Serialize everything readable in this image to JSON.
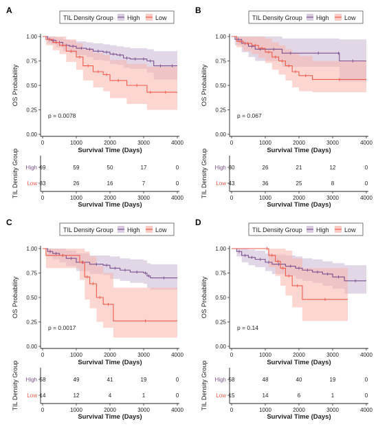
{
  "colors": {
    "high": "#7b4f8e",
    "low": "#ef5a4b",
    "high_band": "#c9b6d3",
    "low_band": "#f9b5ac"
  },
  "chart_data": [
    {
      "type": "line",
      "panel": "A",
      "legend_title": "TIL Density Group",
      "legend": [
        "High",
        "Low"
      ],
      "legend_position": "top",
      "xlabel": "Survival Time (Days)",
      "ylabel": "OS Probability",
      "xlim": [
        0,
        4000
      ],
      "ylim": [
        0,
        1
      ],
      "xticks": [
        "0",
        "1000",
        "2000",
        "3000",
        "4000"
      ],
      "yticks": [
        "0.00",
        "0.25",
        "0.50",
        "0.75",
        "1.00"
      ],
      "pvalue": "p = 0.0078",
      "risk_table_title": "TIL Density Group",
      "risk_table_rows": [
        "High",
        "Low"
      ],
      "risk_table": [
        [
          "69",
          "59",
          "50",
          "17",
          "0"
        ],
        [
          "33",
          "26",
          "16",
          "7",
          "0"
        ]
      ],
      "series": [
        {
          "name": "High",
          "x": [
            0,
            150,
            250,
            400,
            600,
            800,
            1000,
            1300,
            1500,
            1800,
            2000,
            2200,
            2400,
            2600,
            2900,
            3100,
            3300,
            3700,
            4000
          ],
          "y": [
            1.0,
            0.97,
            0.96,
            0.94,
            0.91,
            0.9,
            0.88,
            0.87,
            0.85,
            0.84,
            0.82,
            0.81,
            0.78,
            0.77,
            0.77,
            0.75,
            0.7,
            0.7,
            0.7
          ],
          "lower": [
            1.0,
            0.93,
            0.92,
            0.89,
            0.85,
            0.83,
            0.81,
            0.79,
            0.76,
            0.75,
            0.72,
            0.71,
            0.68,
            0.67,
            0.67,
            0.63,
            0.56,
            0.56,
            0.56
          ],
          "upper": [
            1.0,
            1.0,
            1.0,
            0.99,
            0.97,
            0.96,
            0.95,
            0.94,
            0.93,
            0.92,
            0.91,
            0.9,
            0.89,
            0.88,
            0.88,
            0.87,
            0.85,
            0.85,
            0.85
          ]
        },
        {
          "name": "Low",
          "x": [
            0,
            100,
            300,
            500,
            700,
            1000,
            1200,
            1500,
            1800,
            2000,
            2500,
            3100,
            3300,
            4000
          ],
          "y": [
            1.0,
            0.97,
            0.94,
            0.91,
            0.85,
            0.79,
            0.7,
            0.64,
            0.61,
            0.55,
            0.5,
            0.43,
            0.43,
            0.43
          ],
          "lower": [
            1.0,
            0.91,
            0.86,
            0.82,
            0.74,
            0.66,
            0.55,
            0.48,
            0.44,
            0.37,
            0.31,
            0.25,
            0.25,
            0.25
          ],
          "upper": [
            1.0,
            1.0,
            1.0,
            1.0,
            0.97,
            0.93,
            0.87,
            0.83,
            0.81,
            0.76,
            0.72,
            0.69,
            0.69,
            0.69
          ]
        }
      ]
    },
    {
      "type": "line",
      "panel": "B",
      "legend_title": "TIL Density Group",
      "legend": [
        "High",
        "Low"
      ],
      "legend_position": "top",
      "xlabel": "Survival Time (Days)",
      "ylabel": "OS Probability",
      "xlim": [
        0,
        4000
      ],
      "ylim": [
        0,
        1
      ],
      "xticks": [
        "0",
        "1000",
        "2000",
        "3000",
        "4000"
      ],
      "yticks": [
        "0.00",
        "0.25",
        "0.50",
        "0.75",
        "1.00"
      ],
      "pvalue": "p = 0.067",
      "risk_table_title": "TIL Density Group",
      "risk_table_rows": [
        "High",
        "Low"
      ],
      "risk_table": [
        [
          "30",
          "26",
          "21",
          "12",
          "0"
        ],
        [
          "43",
          "36",
          "25",
          "8",
          "0"
        ]
      ],
      "series": [
        {
          "name": "High",
          "x": [
            0,
            100,
            300,
            500,
            700,
            1000,
            1500,
            2000,
            3150,
            3200,
            4000
          ],
          "y": [
            1.0,
            0.97,
            0.93,
            0.9,
            0.87,
            0.87,
            0.83,
            0.83,
            0.83,
            0.75,
            0.75
          ],
          "lower": [
            1.0,
            0.91,
            0.84,
            0.79,
            0.75,
            0.75,
            0.69,
            0.69,
            0.69,
            0.54,
            0.54
          ],
          "upper": [
            1.0,
            1.0,
            1.0,
            1.0,
            1.0,
            1.0,
            0.98,
            0.98,
            0.98,
            0.97,
            0.97
          ]
        },
        {
          "name": "Low",
          "x": [
            0,
            150,
            350,
            600,
            800,
            1000,
            1200,
            1400,
            1600,
            1800,
            2000,
            2400,
            4000
          ],
          "y": [
            1.0,
            0.95,
            0.93,
            0.91,
            0.88,
            0.84,
            0.79,
            0.75,
            0.7,
            0.64,
            0.6,
            0.56,
            0.56
          ],
          "lower": [
            1.0,
            0.89,
            0.85,
            0.82,
            0.78,
            0.73,
            0.66,
            0.61,
            0.55,
            0.48,
            0.44,
            0.43,
            0.43
          ],
          "upper": [
            1.0,
            1.0,
            1.0,
            1.0,
            1.0,
            0.98,
            0.94,
            0.91,
            0.87,
            0.83,
            0.8,
            0.75,
            0.75
          ]
        }
      ]
    },
    {
      "type": "line",
      "panel": "C",
      "legend_title": "TIL Density Group",
      "legend": [
        "High",
        "Low"
      ],
      "legend_position": "top",
      "xlabel": "Survival Time (Days)",
      "ylabel": "OS Probability",
      "xlim": [
        0,
        4000
      ],
      "ylim": [
        0,
        1
      ],
      "xticks": [
        "0",
        "1000",
        "2000",
        "3000",
        "4000"
      ],
      "yticks": [
        "0.00",
        "0.25",
        "0.50",
        "0.75",
        "1.00"
      ],
      "pvalue": "p = 0.0017",
      "risk_table_title": "TIL Density Group",
      "risk_table_rows": [
        "High",
        "Low"
      ],
      "risk_table": [
        [
          "58",
          "49",
          "41",
          "19",
          "0"
        ],
        [
          "14",
          "12",
          "4",
          "1",
          "0"
        ]
      ],
      "series": [
        {
          "name": "High",
          "x": [
            0,
            150,
            300,
            500,
            700,
            1000,
            1400,
            1800,
            2000,
            2300,
            2600,
            3000,
            3100,
            3200,
            4000
          ],
          "y": [
            1.0,
            0.97,
            0.95,
            0.93,
            0.9,
            0.86,
            0.84,
            0.83,
            0.8,
            0.78,
            0.76,
            0.75,
            0.72,
            0.7,
            0.7
          ],
          "lower": [
            1.0,
            0.92,
            0.89,
            0.86,
            0.82,
            0.77,
            0.74,
            0.73,
            0.69,
            0.67,
            0.65,
            0.64,
            0.6,
            0.58,
            0.58
          ],
          "upper": [
            1.0,
            1.0,
            1.0,
            1.0,
            0.98,
            0.95,
            0.93,
            0.93,
            0.92,
            0.9,
            0.89,
            0.88,
            0.85,
            0.84,
            0.84
          ]
        },
        {
          "name": "Low",
          "x": [
            0,
            100,
            1100,
            1250,
            1400,
            1600,
            1800,
            2100,
            4000
          ],
          "y": [
            1.0,
            0.93,
            0.86,
            0.71,
            0.64,
            0.5,
            0.43,
            0.26,
            0.26
          ],
          "lower": [
            1.0,
            0.8,
            0.68,
            0.48,
            0.39,
            0.25,
            0.19,
            0.09,
            0.09
          ],
          "upper": [
            1.0,
            1.0,
            1.0,
            0.97,
            0.92,
            0.82,
            0.75,
            0.6,
            0.6
          ]
        }
      ]
    },
    {
      "type": "line",
      "panel": "D",
      "legend_title": "TIL Density Group",
      "legend": [
        "High",
        "Low"
      ],
      "legend_position": "top",
      "xlabel": "Survival Time (Days)",
      "ylabel": "OS Probability",
      "xlim": [
        0,
        4000
      ],
      "ylim": [
        0,
        1
      ],
      "xticks": [
        "0",
        "1000",
        "2000",
        "3000",
        "4000"
      ],
      "yticks": [
        "0.00",
        "0.25",
        "0.50",
        "0.75",
        "1.00"
      ],
      "pvalue": "p = 0.14",
      "risk_table_title": "TIL Density Group",
      "risk_table_rows": [
        "High",
        "Low"
      ],
      "risk_table": [
        [
          "58",
          "48",
          "40",
          "19",
          "0"
        ],
        [
          "15",
          "14",
          "6",
          "1",
          "0"
        ]
      ],
      "series": [
        {
          "name": "High",
          "x": [
            0,
            150,
            300,
            500,
            700,
            1000,
            1200,
            1600,
            1900,
            2100,
            2400,
            2700,
            3000,
            3350,
            4000
          ],
          "y": [
            1.0,
            0.97,
            0.93,
            0.91,
            0.89,
            0.86,
            0.84,
            0.82,
            0.8,
            0.78,
            0.76,
            0.74,
            0.71,
            0.67,
            0.67
          ],
          "lower": [
            1.0,
            0.92,
            0.86,
            0.83,
            0.81,
            0.77,
            0.74,
            0.72,
            0.69,
            0.67,
            0.65,
            0.62,
            0.59,
            0.54,
            0.54
          ],
          "upper": [
            1.0,
            1.0,
            1.0,
            0.99,
            0.98,
            0.95,
            0.94,
            0.93,
            0.92,
            0.9,
            0.89,
            0.87,
            0.85,
            0.83,
            0.83
          ]
        },
        {
          "name": "Low",
          "x": [
            0,
            1000,
            1100,
            1300,
            1450,
            1600,
            1800,
            2100,
            3450
          ],
          "y": [
            1.0,
            1.0,
            0.93,
            0.87,
            0.8,
            0.72,
            0.62,
            0.48,
            0.48
          ],
          "lower": [
            1.0,
            1.0,
            0.81,
            0.72,
            0.62,
            0.52,
            0.4,
            0.26,
            0.26
          ],
          "upper": [
            1.0,
            1.0,
            1.0,
            1.0,
            1.0,
            0.98,
            0.9,
            0.8,
            0.8
          ]
        }
      ]
    }
  ]
}
